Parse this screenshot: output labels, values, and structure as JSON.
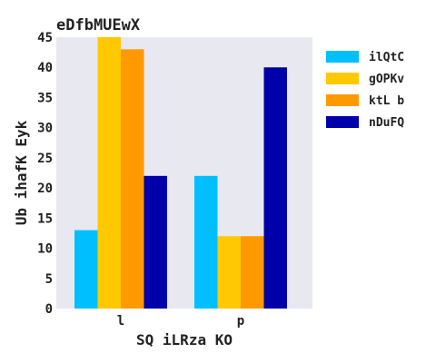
{
  "chart_data": {
    "type": "bar",
    "title": "eDfbMUEwX",
    "xlabel": "SQ iLRza KO",
    "ylabel": "Ub ihafK  Eyk",
    "categories": [
      "l",
      "p"
    ],
    "series": [
      {
        "name": "ilQtC",
        "color": "#00bfff",
        "values": [
          13,
          22
        ]
      },
      {
        "name": "gOPKv",
        "color": "#ffc800",
        "values": [
          45,
          12
        ]
      },
      {
        "name": "ktL b",
        "color": "#ff9900",
        "values": [
          43,
          12
        ]
      },
      {
        "name": "nDuFQ",
        "color": "#0000aa",
        "values": [
          22,
          40
        ]
      }
    ],
    "ylim": [
      0,
      45
    ],
    "yticks": [
      0,
      5,
      10,
      15,
      20,
      25,
      30,
      35,
      40,
      45
    ],
    "grid": false,
    "legend": "right",
    "background": "#e8e8f0"
  }
}
